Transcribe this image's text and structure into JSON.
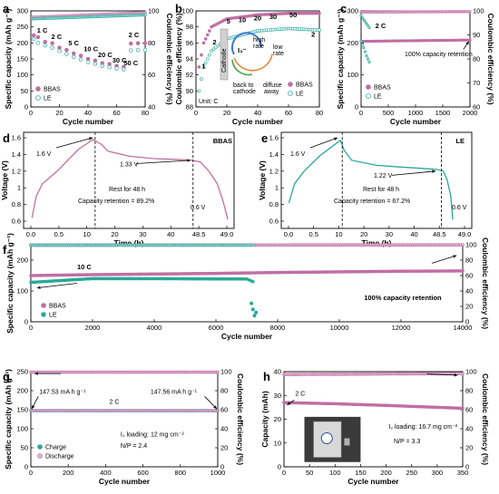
{
  "colors": {
    "bbas": "#c06fa3",
    "le": "#2aa89a",
    "bbas_light": "#e2b4d2",
    "le_light": "#9fd9cf"
  },
  "chart_data": [
    {
      "panel": "a",
      "type": "scatter",
      "xlabel": "Cycle number",
      "ylabel": "Specific capacity (mAh g⁻¹)",
      "y2label": "Coulombic efficiency (%)",
      "xlim": [
        0,
        80
      ],
      "ylim": [
        0,
        300
      ],
      "y2lim": [
        40,
        100
      ],
      "xticks": [
        0,
        20,
        40,
        60,
        80
      ],
      "yticks": [
        0,
        50,
        100,
        150,
        200,
        250,
        300
      ],
      "y2ticks": [
        40,
        60,
        80,
        100
      ],
      "series": [
        {
          "name": "BBAS",
          "points": [
            [
              2,
              224
            ],
            [
              5,
              218
            ],
            [
              10,
              203
            ],
            [
              15,
              199
            ],
            [
              20,
              185
            ],
            [
              25,
              178
            ],
            [
              30,
              167
            ],
            [
              35,
              160
            ],
            [
              40,
              150
            ],
            [
              45,
              145
            ],
            [
              50,
              137
            ],
            [
              55,
              134
            ],
            [
              60,
              128
            ],
            [
              65,
              125
            ],
            [
              70,
              198
            ],
            [
              75,
              199
            ],
            [
              80,
              199
            ]
          ]
        },
        {
          "name": "LE",
          "points": [
            [
              2,
              212
            ],
            [
              5,
              200
            ],
            [
              10,
              192
            ],
            [
              15,
              185
            ],
            [
              20,
              175
            ],
            [
              25,
              165
            ],
            [
              30,
              156
            ],
            [
              35,
              148
            ],
            [
              40,
              140
            ],
            [
              45,
              135
            ],
            [
              50,
              128
            ],
            [
              55,
              124
            ],
            [
              60,
              120
            ],
            [
              65,
              117
            ],
            [
              70,
              177
            ],
            [
              75,
              178
            ],
            [
              80,
              178
            ]
          ]
        }
      ],
      "ce_value": 98,
      "rate_labels": [
        "1 C",
        "2 C",
        "5 C",
        "10 C",
        "20 C",
        "30 C",
        "50 C",
        "2 C"
      ],
      "legend": [
        "BBAS",
        "LE"
      ]
    },
    {
      "panel": "b",
      "type": "scatter",
      "xlabel": "Cycle number",
      "ylabel": "Coulombic efficiency (%)",
      "xlim": [
        0,
        80
      ],
      "ylim": [
        88,
        100
      ],
      "xticks": [
        0,
        20,
        40,
        60,
        80
      ],
      "yticks": [
        88,
        90,
        92,
        94,
        96,
        98,
        100
      ],
      "series": [
        {
          "name": "BBAS",
          "points": [
            [
              2,
              93
            ],
            [
              5,
              96
            ],
            [
              10,
              98
            ],
            [
              20,
              99
            ],
            [
              40,
              99.5
            ],
            [
              60,
              99.7
            ],
            [
              80,
              99.7
            ]
          ]
        },
        {
          "name": "LE",
          "points": [
            [
              2,
              90
            ],
            [
              5,
              93
            ],
            [
              10,
              95
            ],
            [
              20,
              96.5
            ],
            [
              40,
              97.5
            ],
            [
              60,
              97.8
            ],
            [
              80,
              97.6
            ]
          ]
        }
      ],
      "rate_labels": [
        "1",
        "2",
        "5",
        "10",
        "20",
        "30",
        "50",
        "2"
      ],
      "inset_labels": [
        "Cathode",
        "I₃⁻",
        "high rate",
        "low rate",
        "back to cathode",
        "diffuse away"
      ],
      "unit_label": "Unit: C",
      "legend": [
        "BBAS",
        "LE"
      ]
    },
    {
      "panel": "c",
      "type": "scatter",
      "xlabel": "Cycle number",
      "ylabel": "Specific capacity (mAh g⁻¹)",
      "y2label": "Coulombic efficiency (%)",
      "xlim": [
        0,
        2000
      ],
      "ylim": [
        0,
        300
      ],
      "y2lim": [
        60,
        100
      ],
      "xticks": [
        0,
        500,
        1000,
        1500,
        2000
      ],
      "yticks": [
        0,
        100,
        200,
        300
      ],
      "y2ticks": [
        60,
        70,
        80,
        90,
        100
      ],
      "series": [
        {
          "name": "BBAS",
          "points": [
            [
              0,
              205
            ],
            [
              500,
              206
            ],
            [
              1000,
              207
            ],
            [
              1500,
              208
            ],
            [
              2000,
              209
            ]
          ]
        },
        {
          "name": "LE",
          "points": [
            [
              0,
              205
            ],
            [
              50,
              185
            ],
            [
              100,
              160
            ],
            [
              150,
              140
            ]
          ]
        }
      ],
      "annotations": [
        "2 C",
        "100% capacity retention"
      ],
      "legend": [
        "BBAS",
        "LE"
      ]
    },
    {
      "panel": "d",
      "type": "line",
      "xlabel": "Time (h)",
      "ylabel": "Voltage (V)",
      "xticks": [
        "0.0",
        "0.5",
        "10",
        "20",
        "30",
        "40",
        "48.5",
        "49.0"
      ],
      "yticks": [
        0.6,
        0.8,
        1.0,
        1.2,
        1.4,
        1.6
      ],
      "series": [
        {
          "name": "BBAS"
        }
      ],
      "annotations": [
        "1.6 V",
        "1.33 V",
        "Rest for 48 h",
        "Capacity retention = 89.2%",
        "0.6 V"
      ]
    },
    {
      "panel": "e",
      "type": "line",
      "xlabel": "Time (h)",
      "ylabel": "Voltage (V)",
      "xticks": [
        "0.0",
        "0.5",
        "10",
        "20",
        "30",
        "40",
        "48.5",
        "49.0"
      ],
      "yticks": [
        0.6,
        0.8,
        1.0,
        1.2,
        1.4,
        1.6
      ],
      "series": [
        {
          "name": "LE"
        }
      ],
      "annotations": [
        "1.6 V",
        "1.22 V",
        "Rest for 48 h",
        "Capacity retention = 67.2%",
        "0.6 V"
      ]
    },
    {
      "panel": "f",
      "type": "scatter",
      "xlabel": "Cycle number",
      "ylabel": "Specific capacity (mAh g⁻¹)",
      "y2label": "Coulombic efficiency (%)",
      "xlim": [
        0,
        14000
      ],
      "ylim": [
        0,
        250
      ],
      "y2lim": [
        0,
        100
      ],
      "xticks": [
        0,
        2000,
        4000,
        6000,
        8000,
        10000,
        12000,
        14000
      ],
      "yticks": [
        0,
        100,
        200
      ],
      "y2ticks": [
        0,
        20,
        40,
        60,
        80,
        100
      ],
      "series": [
        {
          "name": "BBAS",
          "points": [
            [
              0,
              150
            ],
            [
              2000,
              153
            ],
            [
              4000,
              155
            ],
            [
              6000,
              157
            ],
            [
              8000,
              160
            ],
            [
              10000,
              162
            ],
            [
              12000,
              164
            ],
            [
              14000,
              165
            ]
          ]
        },
        {
          "name": "LE",
          "points": [
            [
              0,
              128
            ],
            [
              2000,
              140
            ],
            [
              4000,
              140
            ],
            [
              6000,
              139
            ],
            [
              7000,
              139
            ],
            [
              7200,
              130
            ]
          ]
        }
      ],
      "annotations": [
        "10 C",
        "100% capacity retention"
      ],
      "legend": [
        "BBAS",
        "LE"
      ]
    },
    {
      "panel": "g",
      "type": "scatter",
      "xlabel": "Cycle number",
      "ylabel": "Specific capacity (mAh g⁻¹)",
      "y2label": "Coulombic efficiency (%)",
      "xlim": [
        0,
        1000
      ],
      "ylim": [
        0,
        250
      ],
      "y2lim": [
        0,
        100
      ],
      "xticks": [
        0,
        200,
        400,
        600,
        800,
        1000
      ],
      "yticks": [
        0,
        50,
        100,
        150,
        200,
        250
      ],
      "y2ticks": [
        0,
        20,
        40,
        60,
        80,
        100
      ],
      "series": [
        {
          "name": "Charge",
          "points": [
            [
              0,
              147.53
            ],
            [
              1000,
              147.56
            ]
          ]
        },
        {
          "name": "Discharge",
          "points": [
            [
              0,
              147.53
            ],
            [
              1000,
              147.56
            ]
          ]
        }
      ],
      "annotations": [
        "147.53 mA h g⁻¹",
        "147.56 mA h g⁻¹",
        "2 C",
        "I₂ loading: 12 mg cm⁻²",
        "N/P = 2.4"
      ],
      "legend": [
        "Charge",
        "Discharge"
      ]
    },
    {
      "panel": "h",
      "type": "scatter",
      "xlabel": "Cycle number",
      "ylabel": "Capacity (mAh)",
      "y2label": "Coulombic efficiency (%)",
      "xlim": [
        0,
        350
      ],
      "ylim": [
        0,
        40
      ],
      "y2lim": [
        0,
        100
      ],
      "xticks": [
        0,
        50,
        100,
        150,
        200,
        250,
        300,
        350
      ],
      "yticks": [
        0,
        10,
        20,
        30,
        40
      ],
      "y2ticks": [
        0,
        20,
        40,
        60,
        80,
        100
      ],
      "series": [
        {
          "points": [
            [
              0,
              27
            ],
            [
              100,
              26.5
            ],
            [
              200,
              25.8
            ],
            [
              300,
              25.0
            ],
            [
              350,
              24.6
            ]
          ]
        }
      ],
      "annotations": [
        "2 C",
        "I₂ loading: 16.7 mg cm⁻²",
        "N/P = 3.3"
      ]
    }
  ]
}
